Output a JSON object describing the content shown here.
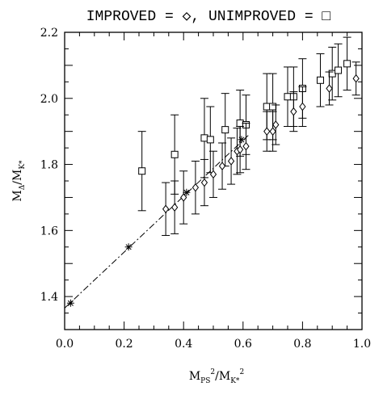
{
  "chart_data": {
    "type": "scatter",
    "title": "IMPROVED = ◇, UNIMPROVED = □",
    "xlabel": {
      "base": "M",
      "sub1": "PS",
      "sup1": "2",
      "sep": "/",
      "base2": "M",
      "sub2": "K*",
      "sup2": "2"
    },
    "ylabel": {
      "base": "M",
      "sub1": "Δ",
      "sep": "/",
      "base2": "M",
      "sub2": "K*"
    },
    "xlim": [
      0.0,
      1.0
    ],
    "ylim": [
      1.3,
      2.2
    ],
    "x_ticks": [
      "0.0",
      "0.2",
      "0.4",
      "0.6",
      "0.8",
      "1.0"
    ],
    "y_ticks": [
      "1.4",
      "1.6",
      "1.8",
      "2.0",
      "2.2"
    ],
    "series": [
      {
        "marker": "square",
        "points": [
          {
            "x": 0.26,
            "y": 1.78,
            "err": 0.12
          },
          {
            "x": 0.37,
            "y": 1.83,
            "err": 0.12
          },
          {
            "x": 0.47,
            "y": 1.88,
            "err": 0.12
          },
          {
            "x": 0.49,
            "y": 1.875,
            "err": 0.1
          },
          {
            "x": 0.54,
            "y": 1.905,
            "err": 0.11
          },
          {
            "x": 0.59,
            "y": 1.925,
            "err": 0.1
          },
          {
            "x": 0.61,
            "y": 1.92,
            "err": 0.09
          },
          {
            "x": 0.68,
            "y": 1.975,
            "err": 0.1
          },
          {
            "x": 0.7,
            "y": 1.975,
            "err": 0.1
          },
          {
            "x": 0.75,
            "y": 2.005,
            "err": 0.09
          },
          {
            "x": 0.77,
            "y": 2.005,
            "err": 0.09
          },
          {
            "x": 0.8,
            "y": 2.03,
            "err": 0.09
          },
          {
            "x": 0.86,
            "y": 2.055,
            "err": 0.08
          },
          {
            "x": 0.9,
            "y": 2.075,
            "err": 0.08
          },
          {
            "x": 0.92,
            "y": 2.085,
            "err": 0.08
          },
          {
            "x": 0.95,
            "y": 2.105,
            "err": 0.08
          }
        ]
      },
      {
        "marker": "diamond",
        "points": [
          {
            "x": 0.34,
            "y": 1.665,
            "err": 0.08
          },
          {
            "x": 0.37,
            "y": 1.67,
            "err": 0.08
          },
          {
            "x": 0.4,
            "y": 1.7,
            "err": 0.08
          },
          {
            "x": 0.44,
            "y": 1.73,
            "err": 0.08
          },
          {
            "x": 0.47,
            "y": 1.745,
            "err": 0.07
          },
          {
            "x": 0.5,
            "y": 1.77,
            "err": 0.07
          },
          {
            "x": 0.53,
            "y": 1.795,
            "err": 0.07
          },
          {
            "x": 0.56,
            "y": 1.81,
            "err": 0.07
          },
          {
            "x": 0.58,
            "y": 1.84,
            "err": 0.07
          },
          {
            "x": 0.59,
            "y": 1.845,
            "err": 0.07
          },
          {
            "x": 0.61,
            "y": 1.855,
            "err": 0.07
          },
          {
            "x": 0.68,
            "y": 1.9,
            "err": 0.06
          },
          {
            "x": 0.7,
            "y": 1.9,
            "err": 0.06
          },
          {
            "x": 0.71,
            "y": 1.92,
            "err": 0.06
          },
          {
            "x": 0.77,
            "y": 1.96,
            "err": 0.06
          },
          {
            "x": 0.8,
            "y": 1.975,
            "err": 0.06
          },
          {
            "x": 0.89,
            "y": 2.03,
            "err": 0.05
          },
          {
            "x": 0.98,
            "y": 2.06,
            "err": 0.05
          }
        ]
      },
      {
        "marker": "star",
        "points": [
          {
            "x": 0.02,
            "y": 1.38
          },
          {
            "x": 0.215,
            "y": 1.55
          },
          {
            "x": 0.41,
            "y": 1.715
          },
          {
            "x": 0.595,
            "y": 1.875
          }
        ]
      }
    ],
    "fit_line": {
      "style": "dash-dot",
      "x": [
        0.0,
        0.62
      ],
      "y": [
        1.365,
        1.89
      ]
    }
  }
}
